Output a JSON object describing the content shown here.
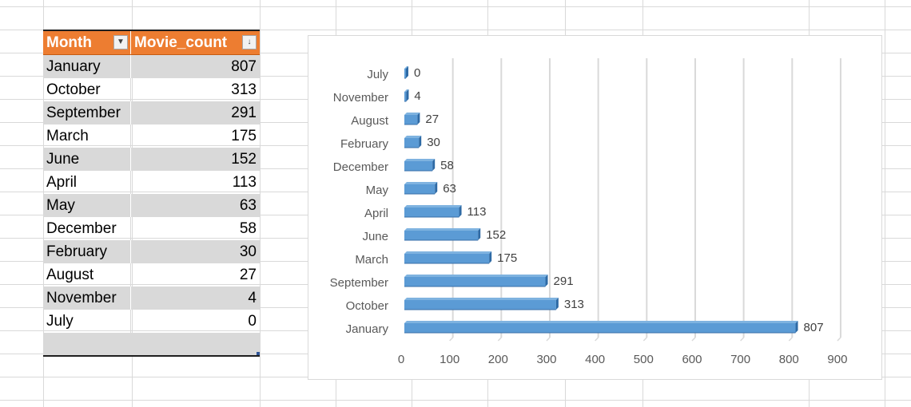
{
  "table": {
    "headers": {
      "month": "Month",
      "count": "Movie_count"
    },
    "rows": [
      {
        "month": "January",
        "count": "807"
      },
      {
        "month": "October",
        "count": "313"
      },
      {
        "month": "September",
        "count": "291"
      },
      {
        "month": "March",
        "count": "175"
      },
      {
        "month": "June",
        "count": "152"
      },
      {
        "month": "April",
        "count": "113"
      },
      {
        "month": "May",
        "count": "63"
      },
      {
        "month": "December",
        "count": "58"
      },
      {
        "month": "February",
        "count": "30"
      },
      {
        "month": "August",
        "count": "27"
      },
      {
        "month": "November",
        "count": "4"
      },
      {
        "month": "July",
        "count": "0"
      }
    ],
    "header_color": "#ed7d31",
    "band_color": "#d9d9d9",
    "icons": {
      "month_filter": "dropdown-arrow-icon",
      "count_filter": "sort-descending-icon"
    }
  },
  "chart_data": {
    "type": "bar",
    "orientation": "horizontal",
    "categories": [
      "July",
      "November",
      "August",
      "February",
      "December",
      "May",
      "April",
      "June",
      "March",
      "September",
      "October",
      "January"
    ],
    "values": [
      0,
      4,
      27,
      30,
      58,
      63,
      113,
      152,
      175,
      291,
      313,
      807
    ],
    "data_labels": [
      "0",
      "4",
      "27",
      "30",
      "58",
      "63",
      "113",
      "152",
      "175",
      "291",
      "313",
      "807"
    ],
    "x_ticks": [
      "0",
      "100",
      "200",
      "300",
      "400",
      "500",
      "600",
      "700",
      "800",
      "900"
    ],
    "xlim": [
      0,
      900
    ],
    "grid": true,
    "bar_style": "3d",
    "bar_color": "#5b9bd5",
    "title": "",
    "xlabel": "",
    "ylabel": ""
  }
}
